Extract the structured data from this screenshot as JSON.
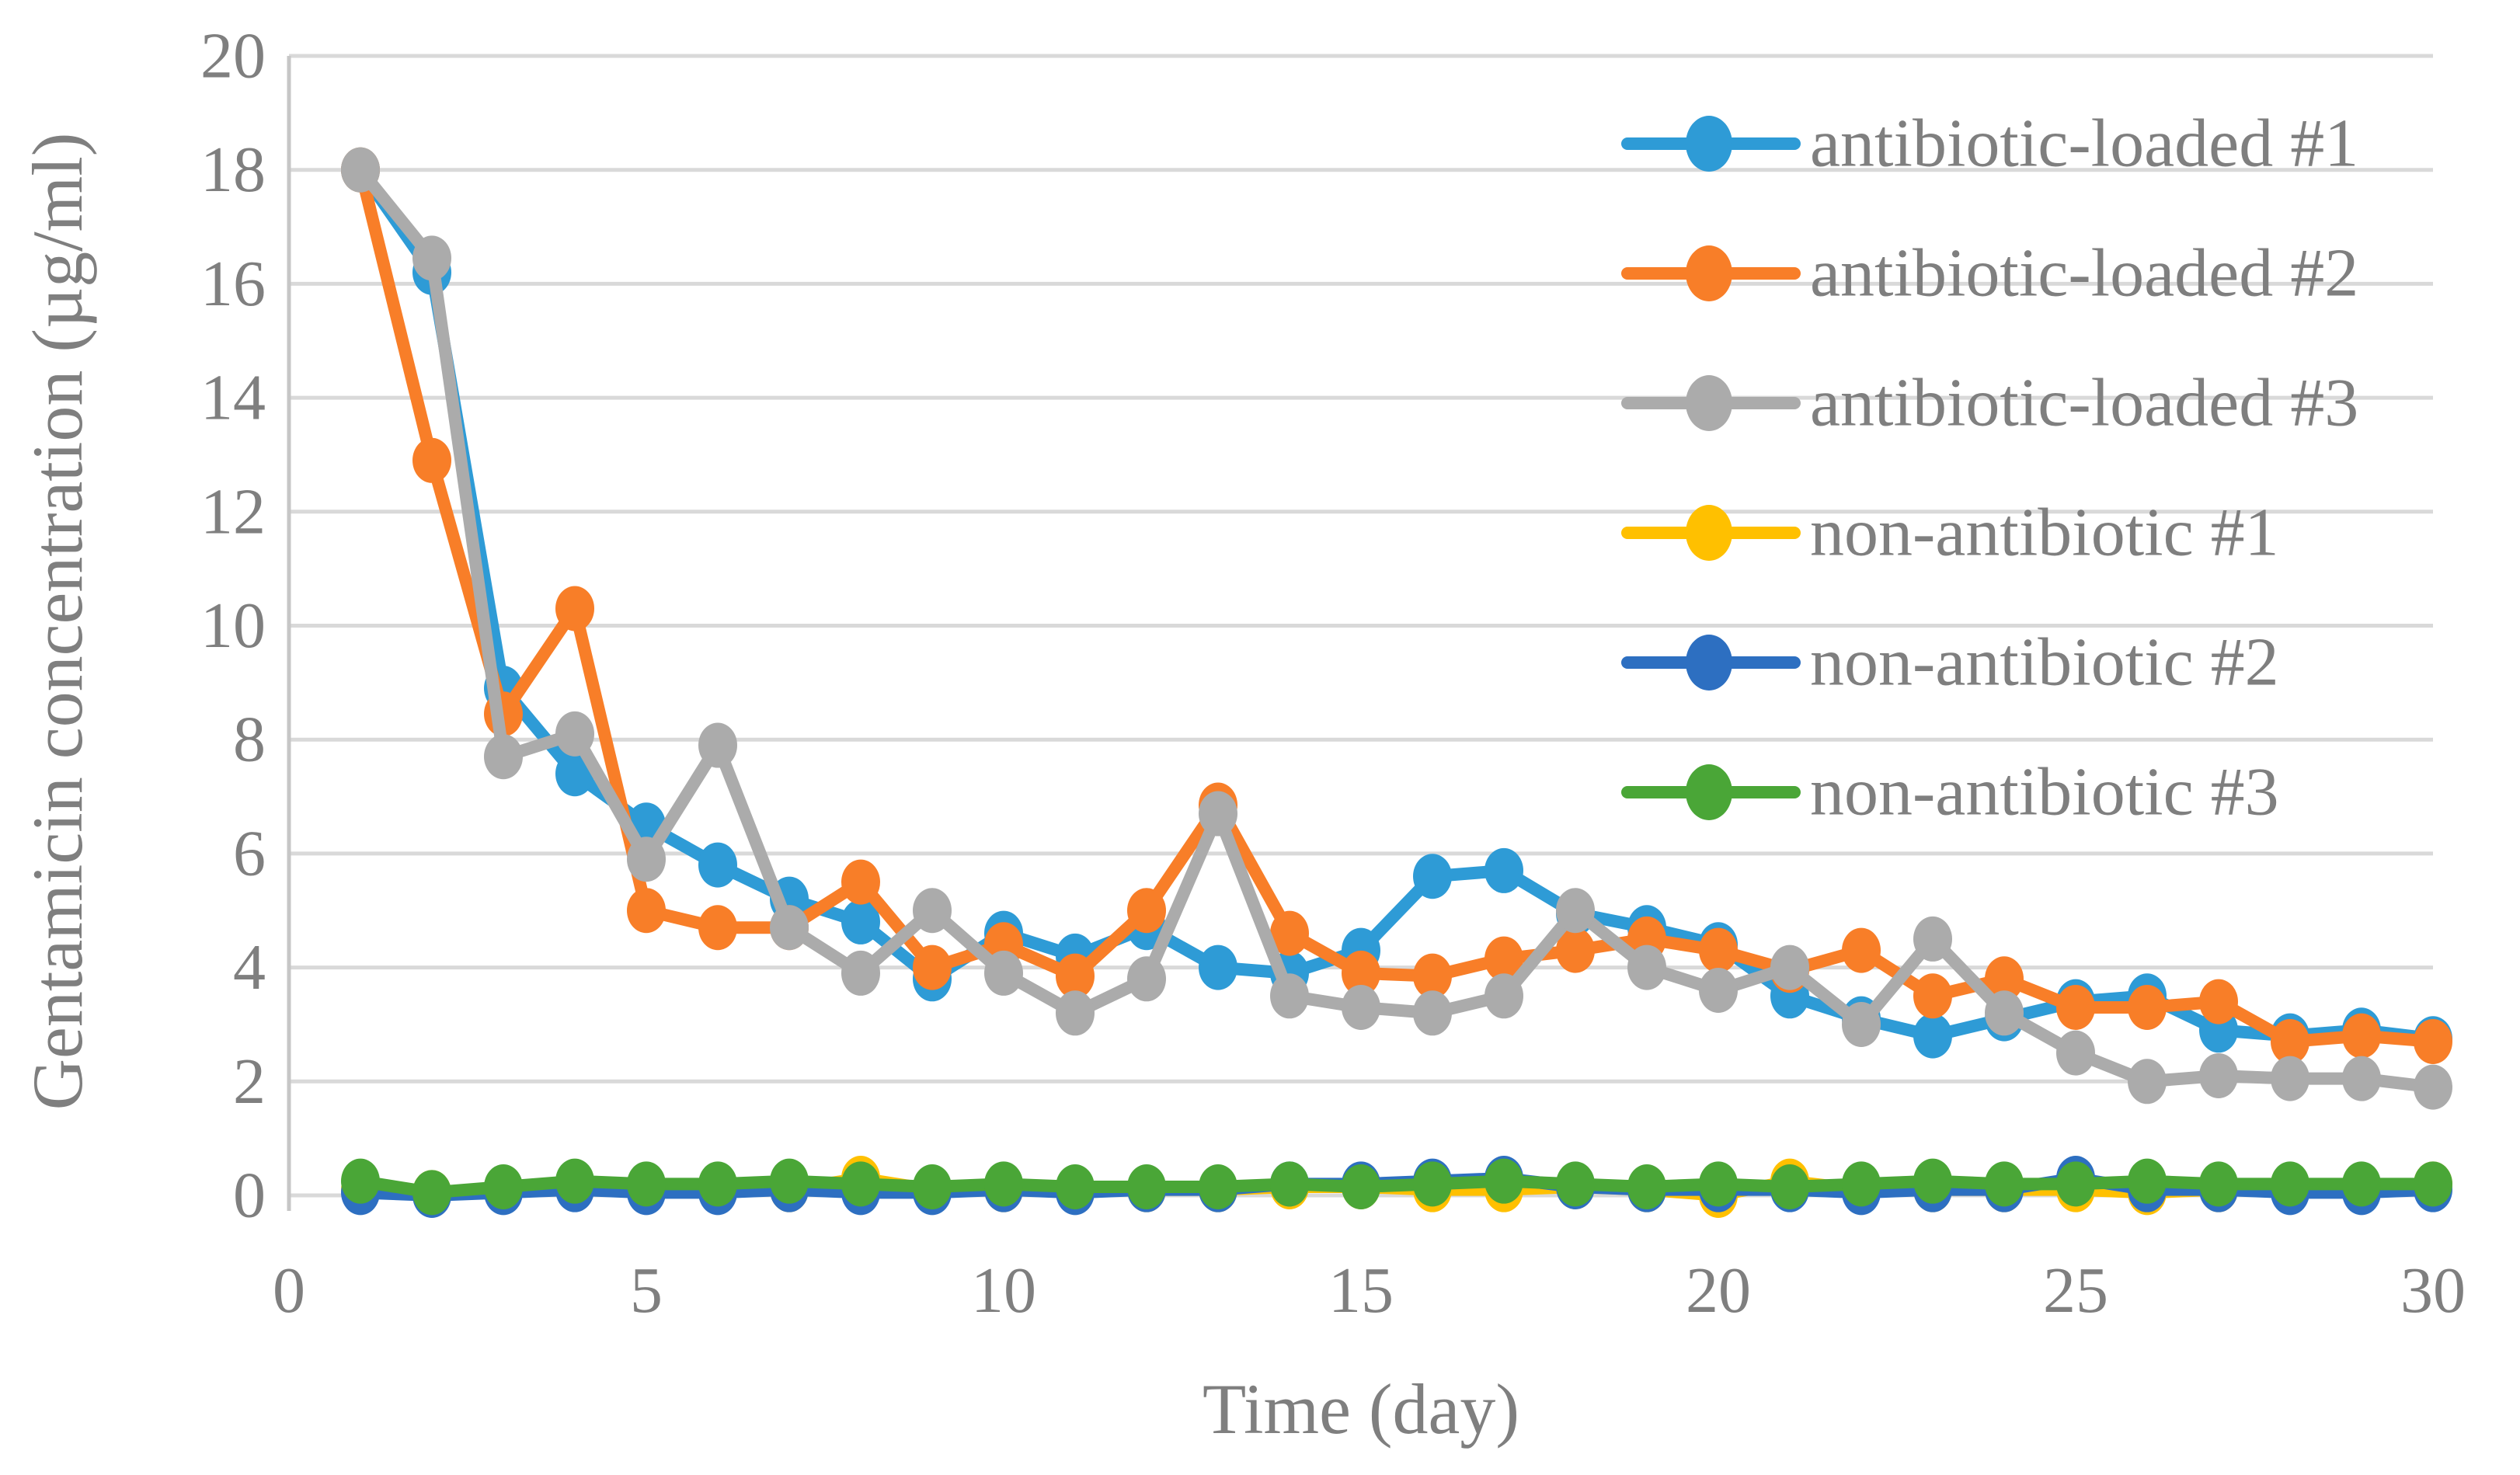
{
  "chart_data": {
    "type": "line",
    "title": "",
    "xlabel": "Time (day)",
    "ylabel": "Gentamicin concentration (µg/ml)",
    "xlim": [
      0,
      30
    ],
    "ylim": [
      0,
      20
    ],
    "x_ticks": [
      0,
      5,
      10,
      15,
      20,
      25,
      30
    ],
    "y_ticks": [
      0,
      2,
      4,
      6,
      8,
      10,
      12,
      14,
      16,
      18,
      20
    ],
    "grid": "horizontal",
    "legend_position": "right-top",
    "x": [
      1,
      2,
      3,
      4,
      5,
      6,
      7,
      8,
      9,
      10,
      11,
      12,
      13,
      14,
      15,
      16,
      17,
      18,
      19,
      20,
      21,
      22,
      23,
      24,
      25,
      26,
      27,
      28,
      29,
      30
    ],
    "series": [
      {
        "name": "antibiotic-loaded #1",
        "color": "#2E9BD6",
        "values": [
          18.0,
          16.2,
          8.9,
          7.4,
          6.5,
          5.8,
          5.2,
          4.8,
          3.8,
          4.6,
          4.2,
          4.7,
          4.0,
          3.9,
          4.3,
          5.6,
          5.7,
          4.95,
          4.7,
          4.4,
          3.5,
          3.1,
          2.8,
          3.1,
          3.4,
          3.5,
          2.9,
          2.8,
          2.9,
          2.75
        ]
      },
      {
        "name": "antibiotic-loaded #2",
        "color": "#F87E28",
        "values": [
          18.0,
          12.9,
          8.45,
          10.3,
          5.0,
          4.7,
          4.7,
          5.5,
          4.0,
          4.4,
          3.85,
          5.0,
          6.85,
          4.6,
          3.9,
          3.85,
          4.15,
          4.3,
          4.5,
          4.3,
          3.95,
          4.3,
          3.5,
          3.8,
          3.3,
          3.3,
          3.4,
          2.7,
          2.8,
          2.7
        ]
      },
      {
        "name": "antibiotic-loaded #3",
        "color": "#ABABAB",
        "values": [
          18.0,
          16.45,
          7.7,
          8.1,
          5.9,
          7.9,
          4.7,
          3.9,
          5.0,
          3.9,
          3.2,
          3.8,
          6.7,
          3.5,
          3.3,
          3.2,
          3.5,
          5.0,
          4.0,
          3.6,
          4.0,
          3.0,
          4.5,
          3.2,
          2.5,
          2.0,
          2.1,
          2.05,
          2.05,
          1.9
        ]
      },
      {
        "name": "non-antibiotic #1",
        "color": "#FFC000",
        "values": [
          0.1,
          0.05,
          0.1,
          0.2,
          0.1,
          0.1,
          0.1,
          0.3,
          0.1,
          0.1,
          0.1,
          0.1,
          0.1,
          0.15,
          0.15,
          0.1,
          0.1,
          0.15,
          0.1,
          0.0,
          0.25,
          0.1,
          0.1,
          0.1,
          0.1,
          0.05,
          0.1,
          0.1,
          0.1,
          0.2
        ]
      },
      {
        "name": "non-antibiotic #2",
        "color": "#2D6FC1",
        "values": [
          0.05,
          0.0,
          0.05,
          0.1,
          0.05,
          0.05,
          0.1,
          0.05,
          0.05,
          0.1,
          0.05,
          0.1,
          0.1,
          0.2,
          0.2,
          0.25,
          0.3,
          0.15,
          0.1,
          0.1,
          0.1,
          0.05,
          0.1,
          0.1,
          0.3,
          0.1,
          0.1,
          0.05,
          0.05,
          0.1
        ]
      },
      {
        "name": "non-antibiotic #3",
        "color": "#4AA637",
        "values": [
          0.25,
          0.05,
          0.15,
          0.25,
          0.2,
          0.2,
          0.25,
          0.2,
          0.15,
          0.2,
          0.15,
          0.15,
          0.15,
          0.2,
          0.15,
          0.2,
          0.25,
          0.2,
          0.15,
          0.2,
          0.15,
          0.2,
          0.25,
          0.2,
          0.2,
          0.25,
          0.2,
          0.2,
          0.2,
          0.2
        ]
      }
    ],
    "colors": {
      "gridline": "#D9D9D9",
      "axis_line": "#C6C6C6",
      "text": "#7F7F7F"
    }
  }
}
